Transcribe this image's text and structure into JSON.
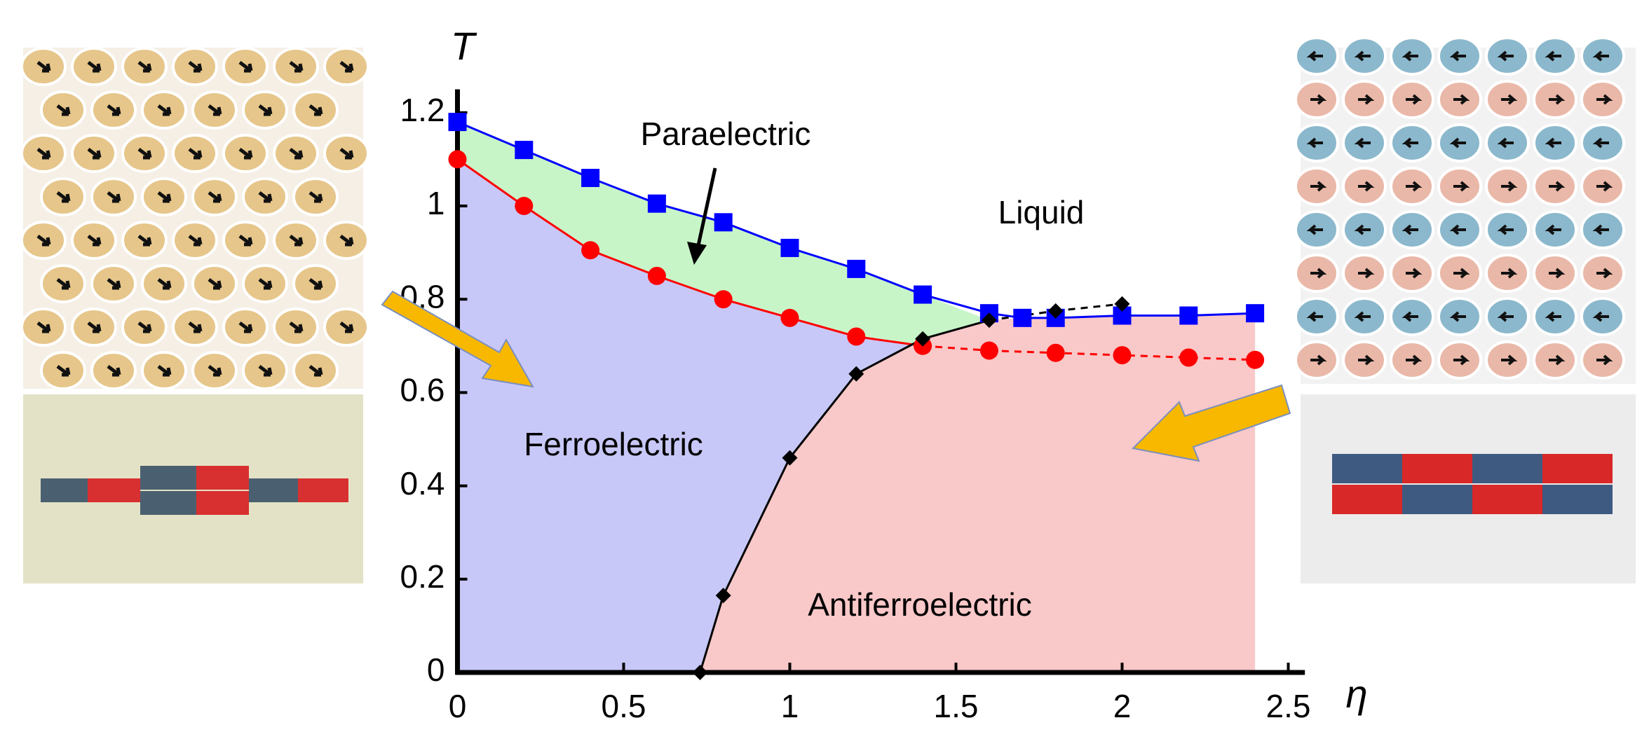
{
  "chart_data": {
    "type": "line",
    "x_label": "η",
    "y_label": "T",
    "annotations": [
      "Paraelectric",
      "Liquid",
      "Ferroelectric",
      "Antiferroelectric"
    ],
    "xlim": [
      0,
      2.55
    ],
    "ylim": [
      0,
      1.25
    ],
    "xticks": [
      0,
      0.5,
      1,
      1.5,
      2,
      2.5
    ],
    "yticks": [
      0,
      0.2,
      0.4,
      0.6,
      0.8,
      1,
      1.2
    ],
    "legend": false,
    "series": [
      {
        "color": "#0000ff",
        "marker": "square",
        "line": "solid",
        "x": [
          0,
          0.2,
          0.4,
          0.6,
          0.8,
          1.0,
          1.2,
          1.4,
          1.6,
          1.7,
          1.8,
          2.0,
          2.2,
          2.4
        ],
        "values": [
          1.18,
          1.12,
          1.06,
          1.005,
          0.965,
          0.91,
          0.865,
          0.81,
          0.77,
          0.76,
          0.76,
          0.765,
          0.765,
          0.77
        ]
      },
      {
        "color": "#ff0000",
        "marker": "circle",
        "line": "solid",
        "x": [
          0,
          0.2,
          0.4,
          0.6,
          0.8,
          1.0,
          1.2,
          1.4
        ],
        "values": [
          1.1,
          1.0,
          0.905,
          0.85,
          0.8,
          0.76,
          0.72,
          0.7
        ]
      },
      {
        "color": "#ff0000",
        "marker": "circle",
        "line": "dashed",
        "x": [
          1.6,
          1.8,
          2.0,
          2.2,
          2.4
        ],
        "values": [
          0.69,
          0.685,
          0.68,
          0.675,
          0.67
        ]
      },
      {
        "color": "#000000",
        "marker": "diamond",
        "line": "solid",
        "x": [
          0.73,
          0.8,
          1.0,
          1.2,
          1.4,
          1.6
        ],
        "values": [
          0,
          0.165,
          0.46,
          0.64,
          0.715,
          0.755
        ]
      },
      {
        "color": "#000000",
        "marker": "diamond",
        "line": "dashed",
        "x": [
          1.8,
          2.0
        ],
        "values": [
          0.775,
          0.79
        ]
      }
    ]
  }
}
